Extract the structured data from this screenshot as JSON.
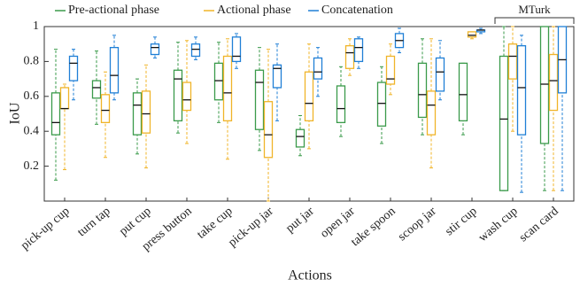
{
  "chart_data": {
    "type": "box",
    "x_label": "Actions",
    "y_label": "IoU",
    "categories": [
      "pick-up cup",
      "turn tap",
      "put cup",
      "press button",
      "take cup",
      "pick-up jar",
      "put jar",
      "open jar",
      "take spoon",
      "scoop jar",
      "stir cup",
      "wash cup",
      "scan card"
    ],
    "ylim": [
      0,
      1
    ],
    "yticks": [
      0.2,
      0.4,
      0.6,
      0.8,
      1
    ],
    "legend": "top",
    "annotation": {
      "text": "MTurk",
      "from": "wash cup",
      "to": "scan card"
    },
    "series": [
      {
        "name": "Pre-actional phase",
        "color": "#3a9a4a",
        "whislo": [
          0.12,
          0.44,
          0.27,
          0.39,
          0.45,
          0.29,
          0.26,
          0.37,
          0.33,
          0.38,
          0.38,
          0.06,
          0.06
        ],
        "q1": [
          0.38,
          0.59,
          0.38,
          0.46,
          0.58,
          0.41,
          0.31,
          0.45,
          0.43,
          0.48,
          0.46,
          0.06,
          0.33
        ],
        "med": [
          0.45,
          0.65,
          0.55,
          0.7,
          0.69,
          0.68,
          0.37,
          0.53,
          0.56,
          0.61,
          0.61,
          0.47,
          0.67
        ],
        "q3": [
          0.62,
          0.69,
          0.62,
          0.75,
          0.79,
          0.75,
          0.41,
          0.66,
          0.68,
          0.79,
          0.79,
          0.83,
          1.0
        ],
        "whishi": [
          0.87,
          0.86,
          0.7,
          0.91,
          0.91,
          0.88,
          0.49,
          0.77,
          0.77,
          0.93,
          0.79,
          1.0,
          1.0
        ]
      },
      {
        "name": "Actional phase",
        "color": "#f0b429",
        "whislo": [
          0.18,
          0.25,
          0.19,
          0.33,
          0.24,
          0.0,
          0.3,
          0.72,
          0.61,
          0.19,
          0.93,
          0.4,
          0.06
        ],
        "q1": [
          0.53,
          0.45,
          0.39,
          0.52,
          0.46,
          0.25,
          0.46,
          0.76,
          0.67,
          0.38,
          0.94,
          0.7,
          0.52
        ],
        "med": [
          0.53,
          0.52,
          0.5,
          0.58,
          0.62,
          0.38,
          0.56,
          0.85,
          0.7,
          0.55,
          0.95,
          0.83,
          0.69
        ],
        "q3": [
          0.65,
          0.61,
          0.63,
          0.68,
          0.83,
          0.57,
          0.74,
          0.89,
          0.83,
          0.63,
          0.97,
          0.9,
          0.84
        ],
        "whishi": [
          0.67,
          0.74,
          0.78,
          0.92,
          0.93,
          0.87,
          0.9,
          0.93,
          0.9,
          0.93,
          0.97,
          1.0,
          1.0
        ]
      },
      {
        "name": "Concatenation",
        "color": "#1f7fd6",
        "whislo": [
          0.58,
          0.58,
          0.82,
          0.81,
          0.76,
          0.46,
          0.6,
          0.76,
          0.85,
          0.58,
          0.96,
          0.05,
          0.06
        ],
        "q1": [
          0.69,
          0.62,
          0.84,
          0.83,
          0.8,
          0.65,
          0.7,
          0.8,
          0.88,
          0.63,
          0.97,
          0.38,
          0.62
        ],
        "med": [
          0.79,
          0.72,
          0.88,
          0.87,
          0.83,
          0.76,
          0.74,
          0.88,
          0.92,
          0.74,
          0.98,
          0.65,
          0.81
        ],
        "q3": [
          0.83,
          0.88,
          0.9,
          0.9,
          0.94,
          0.78,
          0.82,
          0.93,
          0.96,
          0.82,
          0.98,
          0.89,
          1.0
        ],
        "whishi": [
          0.87,
          0.95,
          0.94,
          0.94,
          0.96,
          0.9,
          0.88,
          0.94,
          0.99,
          0.92,
          0.99,
          0.95,
          1.0
        ]
      }
    ]
  }
}
